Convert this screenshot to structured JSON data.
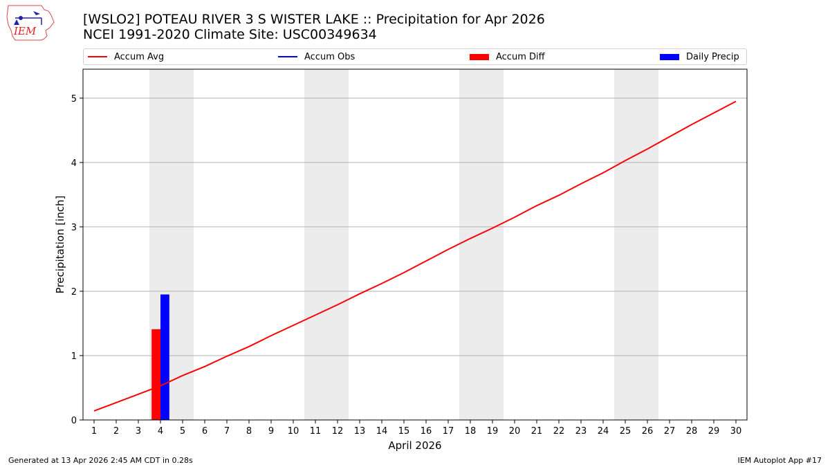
{
  "header": {
    "title_line1": "[WSLO2] POTEAU RIVER 3 S WISTER LAKE :: Precipitation for Apr 2026",
    "title_line2": "NCEI 1991-2020 Climate Site: USC00349634",
    "logo_text": "IEM"
  },
  "legend": [
    {
      "label": "Accum Avg",
      "color": "#ff0000",
      "kind": "line"
    },
    {
      "label": "Accum Obs",
      "color": "#0000ff",
      "kind": "line"
    },
    {
      "label": "Accum Diff",
      "color": "#ff0000",
      "kind": "box"
    },
    {
      "label": "Daily Precip",
      "color": "#0000ff",
      "kind": "box"
    }
  ],
  "footer": {
    "left": "Generated at 13 Apr 2026 2:45 AM CDT in 0.28s",
    "right": "IEM Autoplot App #17"
  },
  "chart_data": {
    "type": "line",
    "title": "[WSLO2] POTEAU RIVER 3 S WISTER LAKE :: Precipitation for Apr 2026",
    "xlabel": "April 2026",
    "ylabel": "Precipitation [inch]",
    "xlim": [
      0.5,
      30.5
    ],
    "ylim": [
      0,
      5.45
    ],
    "x_ticks": [
      1,
      2,
      3,
      4,
      5,
      6,
      7,
      8,
      9,
      10,
      11,
      12,
      13,
      14,
      15,
      16,
      17,
      18,
      19,
      20,
      21,
      22,
      23,
      24,
      25,
      26,
      27,
      28,
      29,
      30
    ],
    "y_ticks": [
      0,
      1,
      2,
      3,
      4,
      5
    ],
    "grid": "horizontal",
    "weekend_shading": [
      [
        3.5,
        5.5
      ],
      [
        10.5,
        12.5
      ],
      [
        17.5,
        19.5
      ],
      [
        24.5,
        26.5
      ]
    ],
    "series": [
      {
        "name": "Accum Avg",
        "type": "line",
        "color": "#ff0000",
        "x": [
          1,
          2,
          3,
          4,
          5,
          6,
          7,
          8,
          9,
          10,
          11,
          12,
          13,
          14,
          15,
          16,
          17,
          18,
          19,
          20,
          21,
          22,
          23,
          24,
          25,
          26,
          27,
          28,
          29,
          30
        ],
        "values": [
          0.14,
          0.27,
          0.4,
          0.53,
          0.69,
          0.83,
          0.99,
          1.14,
          1.31,
          1.47,
          1.63,
          1.79,
          1.96,
          2.12,
          2.29,
          2.47,
          2.65,
          2.82,
          2.98,
          3.15,
          3.33,
          3.49,
          3.67,
          3.84,
          4.03,
          4.21,
          4.4,
          4.59,
          4.77,
          4.95
        ]
      },
      {
        "name": "Accum Diff",
        "type": "bar",
        "color": "#ff0000",
        "x": [
          4
        ],
        "values": [
          1.41
        ]
      },
      {
        "name": "Daily Precip",
        "type": "bar",
        "color": "#0000ff",
        "x": [
          4
        ],
        "values": [
          1.95
        ]
      }
    ]
  }
}
